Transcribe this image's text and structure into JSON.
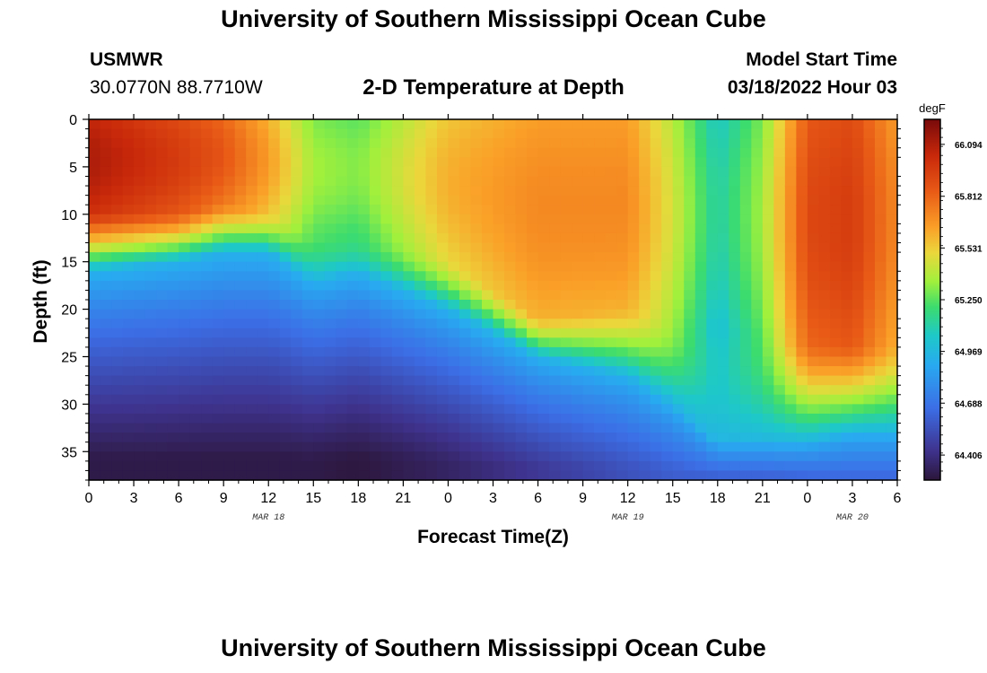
{
  "header": {
    "title": "University of Southern Mississippi Ocean Cube",
    "station": "USMWR",
    "coordinates": "30.0770N  88.7710W",
    "subtitle": "2-D Temperature at Depth",
    "model_label": "Model Start Time",
    "model_time": "03/18/2022 Hour 03"
  },
  "footer": {
    "title": "University of Southern Mississippi Ocean Cube"
  },
  "chart_data": {
    "type": "heatmap",
    "title": "2-D Temperature at Depth",
    "xlabel": "Forecast Time(Z)",
    "ylabel": "Depth (ft)",
    "x_range_hours": [
      0,
      54
    ],
    "x_tick_labels": [
      "0",
      "3",
      "6",
      "9",
      "12",
      "15",
      "18",
      "21",
      "0",
      "3",
      "6",
      "9",
      "12",
      "15",
      "18",
      "21",
      "0",
      "3",
      "6"
    ],
    "date_labels": [
      {
        "text": "MAR 18",
        "hour": 12
      },
      {
        "text": "MAR 19",
        "hour": 36
      },
      {
        "text": "MAR 20",
        "hour": 51
      }
    ],
    "y_range_ft": [
      0,
      38
    ],
    "y_ticks": [
      0,
      5,
      10,
      15,
      20,
      25,
      30,
      35
    ],
    "colorbar": {
      "unit": "degF",
      "min": 64.27,
      "max": 66.23,
      "tick_values": [
        64.406,
        64.688,
        64.969,
        65.25,
        65.531,
        65.812,
        66.094
      ],
      "tick_labels": [
        "64.406",
        "64.688",
        "64.969",
        "65.250",
        "65.531",
        "65.812",
        "66.094"
      ]
    },
    "field": {
      "description_hours": [
        0,
        6,
        9,
        12,
        15,
        18,
        24,
        30,
        36,
        39,
        42,
        45,
        48,
        51,
        54
      ],
      "surface_temp": [
        66.05,
        65.9,
        65.8,
        65.6,
        65.3,
        65.25,
        65.55,
        65.65,
        65.65,
        65.4,
        65.05,
        65.3,
        65.85,
        65.9,
        65.65
      ],
      "warm_layer_bottom_ft": [
        10,
        10,
        9,
        10,
        12,
        12,
        15,
        21,
        20,
        22,
        22,
        23,
        24,
        24,
        24
      ],
      "thermocline_mid_ft": [
        16,
        15,
        14,
        14,
        17,
        16,
        20,
        25,
        27,
        30,
        34,
        34,
        34,
        33,
        33
      ],
      "bottom_temp": [
        64.3,
        64.3,
        64.3,
        64.3,
        64.3,
        64.28,
        64.35,
        64.45,
        64.55,
        64.6,
        64.62,
        64.62,
        64.64,
        64.65,
        64.65
      ]
    }
  }
}
